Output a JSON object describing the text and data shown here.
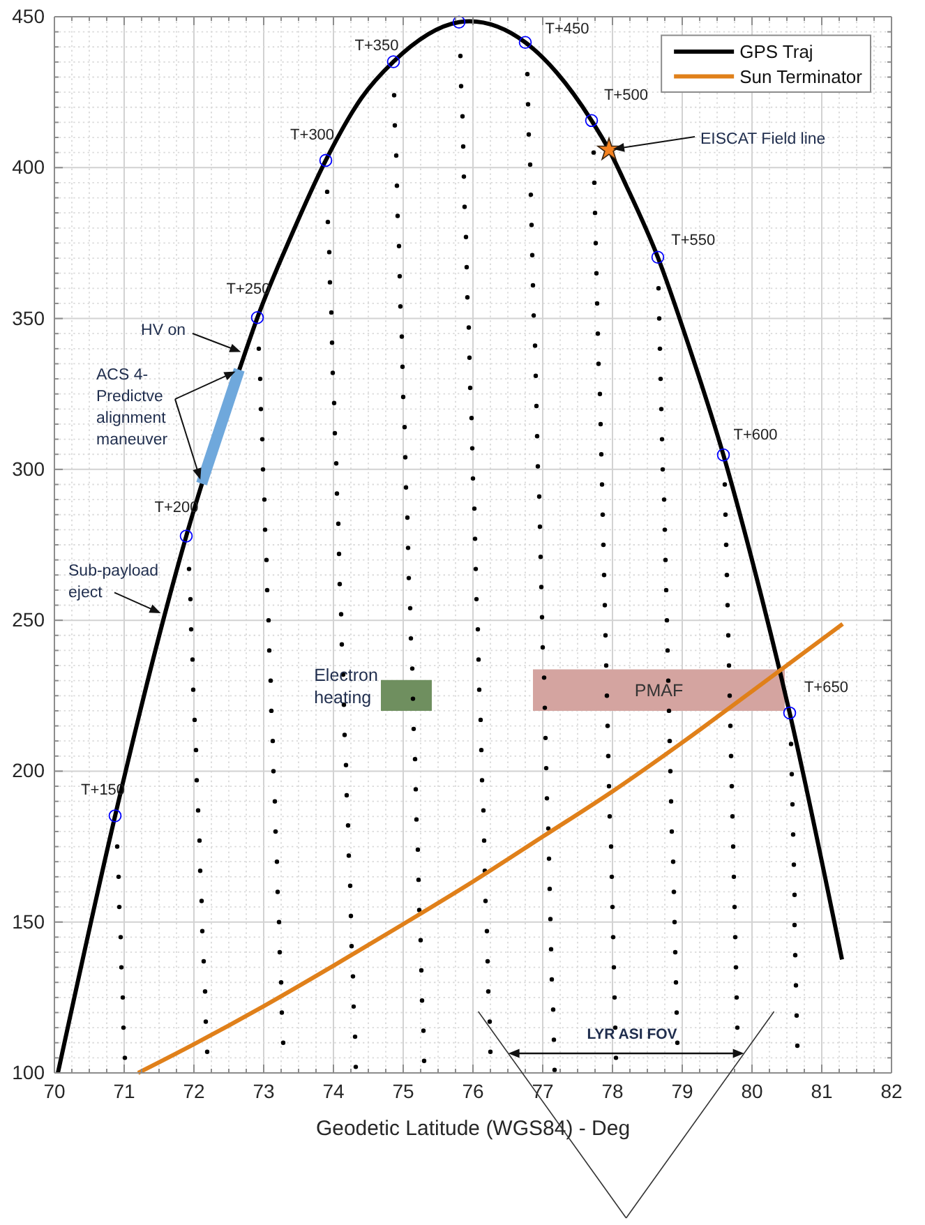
{
  "chart_data": {
    "type": "line",
    "xlabel": "Geodetic Latitude (WGS84) - Deg",
    "xlim": [
      70,
      82
    ],
    "ylim": [
      100,
      450
    ],
    "xticks": [
      70,
      {
        "value": 70.25,
        "label": null
      },
      {
        "value": 70.5,
        "label": null
      },
      {
        "value": 70.75,
        "label": null
      },
      71,
      {
        "value": 71.25,
        "label": null
      },
      {
        "value": 71.5,
        "label": null
      },
      {
        "value": 71.75,
        "label": null
      },
      72,
      {
        "value": 72.25,
        "label": null
      },
      {
        "value": 72.5,
        "label": null
      },
      {
        "value": 72.75,
        "label": null
      },
      73,
      {
        "value": 73.25,
        "label": null
      },
      {
        "value": 73.5,
        "label": null
      },
      {
        "value": 73.75,
        "label": null
      },
      74,
      {
        "value": 74.25,
        "label": null
      },
      {
        "value": 74.5,
        "label": null
      },
      {
        "value": 74.75,
        "label": null
      },
      75,
      {
        "value": 75.25,
        "label": null
      },
      {
        "value": 75.5,
        "label": null
      },
      {
        "value": 75.75,
        "label": null
      },
      76,
      {
        "value": 76.25,
        "label": null
      },
      {
        "value": 76.5,
        "label": null
      },
      {
        "value": 76.75,
        "label": null
      },
      77,
      {
        "value": 77.25,
        "label": null
      },
      {
        "value": 77.5,
        "label": null
      },
      {
        "value": 77.75,
        "label": null
      },
      78,
      {
        "value": 78.25,
        "label": null
      },
      {
        "value": 78.5,
        "label": null
      },
      {
        "value": 78.75,
        "label": null
      },
      79,
      {
        "value": 79.25,
        "label": null
      },
      {
        "value": 79.5,
        "label": null
      },
      {
        "value": 79.75,
        "label": null
      },
      80,
      {
        "value": 80.25,
        "label": null
      },
      {
        "value": 80.5,
        "label": null
      },
      {
        "value": 80.75,
        "label": null
      },
      81,
      {
        "value": 81.25,
        "label": null
      },
      {
        "value": 81.5,
        "label": null
      },
      {
        "value": 81.75,
        "label": null
      },
      82
    ],
    "yticks": [
      100,
      {
        "value": 105,
        "label": null
      },
      {
        "value": 110,
        "label": null
      },
      {
        "value": 115,
        "label": null
      },
      {
        "value": 120,
        "label": null
      },
      {
        "value": 125,
        "label": null
      },
      {
        "value": 130,
        "label": null
      },
      {
        "value": 135,
        "label": null
      },
      {
        "value": 140,
        "label": null
      },
      {
        "value": 145,
        "label": null
      },
      150,
      {
        "value": 155,
        "label": null
      },
      {
        "value": 160,
        "label": null
      },
      {
        "value": 165,
        "label": null
      },
      {
        "value": 170,
        "label": null
      },
      {
        "value": 175,
        "label": null
      },
      {
        "value": 180,
        "label": null
      },
      {
        "value": 185,
        "label": null
      },
      {
        "value": 190,
        "label": null
      },
      {
        "value": 195,
        "label": null
      },
      200,
      {
        "value": 205,
        "label": null
      },
      {
        "value": 210,
        "label": null
      },
      {
        "value": 215,
        "label": null
      },
      {
        "value": 220,
        "label": null
      },
      {
        "value": 225,
        "label": null
      },
      {
        "value": 230,
        "label": null
      },
      {
        "value": 235,
        "label": null
      },
      {
        "value": 240,
        "label": null
      },
      {
        "value": 245,
        "label": null
      },
      250,
      {
        "value": 255,
        "label": null
      },
      {
        "value": 260,
        "label": null
      },
      {
        "value": 265,
        "label": null
      },
      {
        "value": 270,
        "label": null
      },
      {
        "value": 275,
        "label": null
      },
      {
        "value": 280,
        "label": null
      },
      {
        "value": 285,
        "label": null
      },
      {
        "value": 290,
        "label": null
      },
      {
        "value": 295,
        "label": null
      },
      300,
      {
        "value": 305,
        "label": null
      },
      {
        "value": 310,
        "label": null
      },
      {
        "value": 315,
        "label": null
      },
      {
        "value": 320,
        "label": null
      },
      {
        "value": 325,
        "label": null
      },
      {
        "value": 330,
        "label": null
      },
      {
        "value": 335,
        "label": null
      },
      {
        "value": 340,
        "label": null
      },
      {
        "value": 345,
        "label": null
      },
      350,
      {
        "value": 355,
        "label": null
      },
      {
        "value": 360,
        "label": null
      },
      {
        "value": 365,
        "label": null
      },
      {
        "value": 370,
        "label": null
      },
      {
        "value": 375,
        "label": null
      },
      {
        "value": 380,
        "label": null
      },
      {
        "value": 385,
        "label": null
      },
      {
        "value": 390,
        "label": null
      },
      {
        "value": 395,
        "label": null
      },
      400,
      {
        "value": 405,
        "label": null
      },
      {
        "value": 410,
        "label": null
      },
      {
        "value": 415,
        "label": null
      },
      {
        "value": 420,
        "label": null
      },
      {
        "value": 425,
        "label": null
      },
      {
        "value": 430,
        "label": null
      },
      {
        "value": 435,
        "label": null
      },
      {
        "value": 440,
        "label": null
      },
      {
        "value": 445,
        "label": null
      },
      450
    ],
    "grid": true,
    "legend": "top right",
    "series": [
      {
        "type": "scatter",
        "color": "#000000",
        "x": [
          71.01,
          70.99,
          70.98,
          70.96,
          70.95,
          70.93,
          70.92,
          70.9
        ],
        "values": [
          105,
          115,
          125,
          135,
          145,
          155,
          165,
          175
        ]
      },
      {
        "type": "scatter",
        "color": "#000000",
        "x": [
          72.19,
          72.17,
          72.16,
          72.14,
          72.12,
          72.11,
          72.09,
          72.08,
          72.06,
          72.04,
          72.03,
          72.01,
          71.99,
          71.98,
          71.96,
          71.95,
          71.93
        ],
        "values": [
          107,
          117,
          127,
          137,
          147,
          157,
          167,
          177,
          187,
          197,
          207,
          217,
          227,
          237,
          247,
          257,
          267
        ]
      },
      {
        "type": "scatter",
        "color": "#000000",
        "x": [
          73.28,
          73.26,
          73.25,
          73.23,
          73.22,
          73.2,
          73.19,
          73.17,
          73.16,
          73.14,
          73.13,
          73.11,
          73.1,
          73.08,
          73.07,
          73.05,
          73.04,
          73.02,
          73.01,
          72.99,
          72.98,
          72.96,
          72.95,
          72.93
        ],
        "values": [
          110,
          120,
          130,
          140,
          150,
          160,
          170,
          180,
          190,
          200,
          210,
          220,
          230,
          240,
          250,
          260,
          270,
          280,
          290,
          300,
          310,
          320,
          330,
          340
        ]
      },
      {
        "type": "scatter",
        "color": "#000000",
        "x": [
          74.32,
          74.31,
          74.29,
          74.28,
          74.26,
          74.25,
          74.24,
          74.22,
          74.21,
          74.19,
          74.18,
          74.16,
          74.15,
          74.14,
          74.12,
          74.11,
          74.09,
          74.08,
          74.07,
          74.05,
          74.04,
          74.02,
          74.01,
          73.99,
          73.98,
          73.97,
          73.95,
          73.94,
          73.92,
          73.91
        ],
        "values": [
          102,
          112,
          122,
          132,
          142,
          152,
          162,
          172,
          182,
          192,
          202,
          212,
          222,
          232,
          242,
          252,
          262,
          272,
          282,
          292,
          302,
          312,
          322,
          332,
          342,
          352,
          362,
          372,
          382,
          392
        ]
      },
      {
        "type": "scatter",
        "color": "#000000",
        "x": [
          75.3,
          75.29,
          75.27,
          75.26,
          75.25,
          75.23,
          75.22,
          75.21,
          75.19,
          75.18,
          75.17,
          75.15,
          75.14,
          75.13,
          75.11,
          75.1,
          75.08,
          75.07,
          75.06,
          75.04,
          75.03,
          75.02,
          75.0,
          74.99,
          74.98,
          74.96,
          74.95,
          74.94,
          74.92,
          74.91,
          74.9,
          74.88,
          74.87
        ],
        "values": [
          104,
          114,
          124,
          134,
          144,
          154,
          164,
          174,
          184,
          194,
          204,
          214,
          224,
          234,
          244,
          254,
          264,
          274,
          284,
          294,
          304,
          314,
          324,
          334,
          344,
          354,
          364,
          374,
          384,
          394,
          404,
          414,
          424
        ]
      },
      {
        "type": "scatter",
        "color": "#000000",
        "x": [
          76.25,
          76.24,
          76.22,
          76.21,
          76.2,
          76.18,
          76.17,
          76.16,
          76.15,
          76.13,
          76.12,
          76.11,
          76.09,
          76.08,
          76.07,
          76.05,
          76.04,
          76.03,
          76.02,
          76.0,
          75.99,
          75.98,
          75.96,
          75.95,
          75.94,
          75.92,
          75.91,
          75.9,
          75.88,
          75.87,
          75.86,
          75.85,
          75.83,
          75.82
        ],
        "values": [
          107,
          117,
          127,
          137,
          147,
          157,
          167,
          177,
          187,
          197,
          207,
          217,
          227,
          237,
          247,
          257,
          267,
          277,
          287,
          297,
          307,
          317,
          327,
          337,
          347,
          357,
          367,
          377,
          387,
          397,
          407,
          417,
          427,
          437
        ]
      },
      {
        "type": "scatter",
        "color": "#000000",
        "x": [
          77.17,
          77.16,
          77.15,
          77.13,
          77.12,
          77.11,
          77.1,
          77.09,
          77.08,
          77.06,
          77.05,
          77.04,
          77.03,
          77.02,
          77.0,
          76.99,
          76.98,
          76.97,
          76.96,
          76.95,
          76.93,
          76.92,
          76.91,
          76.9,
          76.89,
          76.87,
          76.86,
          76.85,
          76.84,
          76.83,
          76.82,
          76.8,
          76.79,
          76.78
        ],
        "values": [
          101,
          111,
          121,
          131,
          141,
          151,
          161,
          171,
          181,
          191,
          201,
          211,
          221,
          231,
          241,
          251,
          261,
          271,
          281,
          291,
          301,
          311,
          321,
          331,
          341,
          351,
          361,
          371,
          381,
          391,
          401,
          411,
          421,
          431
        ]
      },
      {
        "type": "scatter",
        "color": "#000000",
        "x": [
          78.05,
          78.04,
          78.03,
          78.02,
          78.01,
          78.0,
          77.99,
          77.98,
          77.96,
          77.95,
          77.94,
          77.93,
          77.92,
          77.91,
          77.9,
          77.89,
          77.88,
          77.87,
          77.86,
          77.85,
          77.84,
          77.83,
          77.82,
          77.8,
          77.79,
          77.78,
          77.77,
          77.76,
          77.75,
          77.74,
          77.73
        ],
        "values": [
          105,
          115,
          125,
          135,
          145,
          155,
          165,
          175,
          185,
          195,
          205,
          215,
          225,
          235,
          245,
          255,
          265,
          275,
          285,
          295,
          305,
          315,
          325,
          335,
          345,
          355,
          365,
          375,
          385,
          395,
          405
        ]
      },
      {
        "type": "scatter",
        "color": "#000000",
        "x": [
          78.93,
          78.92,
          78.91,
          78.9,
          78.89,
          78.88,
          78.87,
          78.85,
          78.84,
          78.83,
          78.82,
          78.81,
          78.8,
          78.79,
          78.78,
          78.77,
          78.76,
          78.75,
          78.74,
          78.72,
          78.71,
          78.7,
          78.69,
          78.68,
          78.67,
          78.66
        ],
        "values": [
          110,
          120,
          130,
          140,
          150,
          160,
          170,
          180,
          190,
          200,
          210,
          220,
          230,
          240,
          250,
          260,
          270,
          280,
          290,
          300,
          310,
          320,
          330,
          340,
          350,
          360
        ]
      },
      {
        "type": "scatter",
        "color": "#000000",
        "x": [
          79.79,
          79.78,
          79.77,
          79.76,
          79.75,
          79.74,
          79.73,
          79.72,
          79.71,
          79.7,
          79.69,
          79.68,
          79.67,
          79.66,
          79.65,
          79.64,
          79.63,
          79.62,
          79.61
        ],
        "values": [
          115,
          125,
          135,
          145,
          155,
          165,
          175,
          185,
          195,
          205,
          215,
          225,
          235,
          245,
          255,
          265,
          275,
          285,
          295
        ]
      },
      {
        "type": "scatter",
        "color": "#000000",
        "x": [
          80.65,
          80.64,
          80.63,
          80.62,
          80.61,
          80.61,
          80.6,
          80.59,
          80.58,
          80.57,
          80.56
        ],
        "values": [
          109,
          119,
          129,
          139,
          149,
          159,
          169,
          179,
          189,
          199,
          209
        ]
      },
      {
        "name": "GPS Traj",
        "color": "#000000",
        "x": [
          70.05,
          70.87,
          71.58,
          71.89,
          72.73,
          72.91,
          73.4,
          73.89,
          74.4,
          74.86,
          75.8,
          75.95,
          76.75,
          77.2,
          77.7,
          77.95,
          78.2,
          78.65,
          79.1,
          79.59,
          80.0,
          80.54,
          81.29
        ],
        "values": [
          100,
          185.2,
          251.8,
          277.9,
          338.4,
          350.3,
          377.7,
          402.4,
          423,
          435.1,
          448.2,
          448.5,
          441.5,
          431.5,
          415.6,
          405.9,
          393.9,
          370.3,
          340.5,
          304.8,
          270,
          219.3,
          137.6
        ]
      },
      {
        "name": "Sun Terminator",
        "color": "#e0801a",
        "x": [
          71.2,
          72,
          73,
          74,
          75,
          76,
          77,
          78,
          79,
          80,
          81.3
        ],
        "values": [
          100,
          109.5,
          122.1,
          135.5,
          149.3,
          163.4,
          178.3,
          193.3,
          209.5,
          226.5,
          248.8
        ]
      },
      {
        "color": "#6fa8dc",
        "x": [
          72.11,
          72.65
        ],
        "values": [
          295.3,
          333
        ]
      },
      {
        "type": "scatter",
        "marker": "circle",
        "color": "#0000ff",
        "x": [
          70.87,
          71.89,
          72.91,
          73.89,
          74.86,
          75.8,
          76.75,
          77.7,
          78.65,
          79.59,
          80.54
        ],
        "values": [
          185.2,
          277.9,
          350.3,
          402.4,
          435.1,
          448.2,
          441.5,
          415.6,
          370.3,
          304.8,
          219.3
        ],
        "value_labels": [
          "T+150",
          "T+200",
          "T+250",
          "T+300",
          "T+350",
          null,
          "T+450",
          "T+500",
          "T+550",
          "T+600",
          "T+650"
        ]
      },
      {
        "type": "scatter",
        "marker": "star",
        "color": "#f58220",
        "x": [
          77.95
        ],
        "values": [
          405.9
        ]
      },
      {
        "name": "Electron\nheating",
        "color": "#6f8f5f",
        "x": [
          74.68,
          75.41
        ],
        "values": [
          230,
          230
        ],
        "lower": [
          220,
          220
        ],
        "upper": [
          230,
          230
        ]
      },
      {
        "name": "PMAF",
        "color": "#d4a4a0",
        "x": [
          76.86,
          80.47
        ],
        "values": [
          233.5,
          233.5
        ],
        "lower": [
          220,
          220
        ],
        "upper": [
          233.5,
          233.5
        ]
      }
    ],
    "annotations": [
      {
        "text": "HV on",
        "x": 72.73,
        "y": 338.4
      },
      {
        "text": "ACS 4-\nPredictve\nalignment\nmaneuver",
        "x": 72.65,
        "y": 333
      },
      {
        "text": "Sub-payload\neject",
        "x": 71.58,
        "y": 251.8
      },
      {
        "text": "EISCAT Field line",
        "x": 77.95,
        "y": 405.9
      },
      "LYR ASI FOV"
    ]
  }
}
